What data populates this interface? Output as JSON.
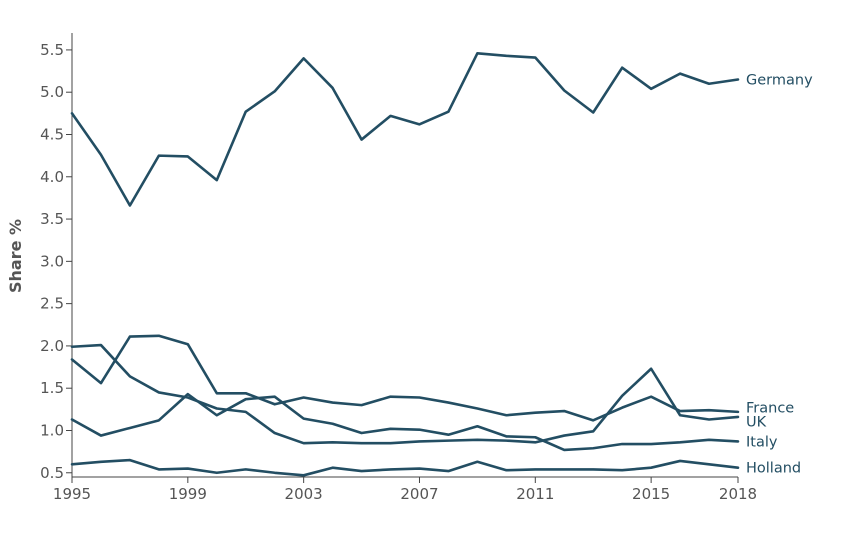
{
  "chart_data": {
    "type": "line",
    "title": "",
    "xlabel": "",
    "ylabel": "Share %",
    "xlim": [
      1995,
      2018
    ],
    "ylim": [
      0.45,
      5.7
    ],
    "x_ticks": [
      1995,
      1999,
      2003,
      2007,
      2011,
      2015,
      2018
    ],
    "x_tick_labels": [
      "1995",
      "1999",
      "2003",
      "2007",
      "2011",
      "2015",
      "2018"
    ],
    "y_ticks": [
      0.5,
      1.0,
      1.5,
      2.0,
      2.5,
      3.0,
      3.5,
      4.0,
      4.5,
      5.0,
      5.5
    ],
    "y_tick_labels": [
      "0.5",
      "1.0",
      "1.5",
      "2.0",
      "2.5",
      "3.0",
      "3.5",
      "4.0",
      "4.5",
      "5.0",
      "5.5"
    ],
    "grid": false,
    "line_color": "#234e63",
    "x": [
      1995,
      1996,
      1997,
      1998,
      1999,
      2000,
      2001,
      2002,
      2003,
      2004,
      2005,
      2006,
      2007,
      2008,
      2009,
      2010,
      2011,
      2012,
      2013,
      2014,
      2015,
      2016,
      2017,
      2018
    ],
    "series": [
      {
        "name": "Germany",
        "values": [
          4.75,
          4.26,
          3.66,
          4.25,
          4.24,
          3.96,
          4.77,
          5.01,
          5.4,
          5.05,
          4.44,
          4.72,
          4.62,
          4.77,
          5.46,
          5.43,
          5.41,
          5.02,
          4.76,
          5.29,
          5.04,
          5.22,
          5.1,
          5.15
        ]
      },
      {
        "name": "France",
        "values": [
          1.84,
          1.56,
          2.11,
          2.12,
          2.02,
          1.44,
          1.44,
          1.31,
          1.39,
          1.33,
          1.3,
          1.4,
          1.39,
          1.33,
          1.26,
          1.18,
          1.21,
          1.23,
          1.12,
          1.27,
          1.4,
          1.23,
          1.24,
          1.22
        ]
      },
      {
        "name": "UK",
        "values": [
          1.99,
          2.01,
          1.64,
          1.45,
          1.39,
          1.26,
          1.22,
          0.97,
          0.85,
          0.86,
          0.85,
          0.85,
          0.87,
          0.88,
          0.89,
          0.88,
          0.86,
          0.94,
          0.99,
          1.41,
          1.73,
          1.18,
          1.13,
          1.16
        ]
      },
      {
        "name": "Italy",
        "values": [
          1.13,
          0.94,
          1.03,
          1.12,
          1.43,
          1.18,
          1.37,
          1.4,
          1.14,
          1.08,
          0.97,
          1.02,
          1.01,
          0.95,
          1.05,
          0.93,
          0.92,
          0.77,
          0.79,
          0.84,
          0.84,
          0.86,
          0.89,
          0.87
        ]
      },
      {
        "name": "Holland",
        "values": [
          0.6,
          0.63,
          0.65,
          0.54,
          0.55,
          0.5,
          0.54,
          0.5,
          0.47,
          0.56,
          0.52,
          0.54,
          0.55,
          0.52,
          0.63,
          0.53,
          0.54,
          0.54,
          0.54,
          0.53,
          0.56,
          0.64,
          0.6,
          0.56
        ]
      }
    ]
  }
}
